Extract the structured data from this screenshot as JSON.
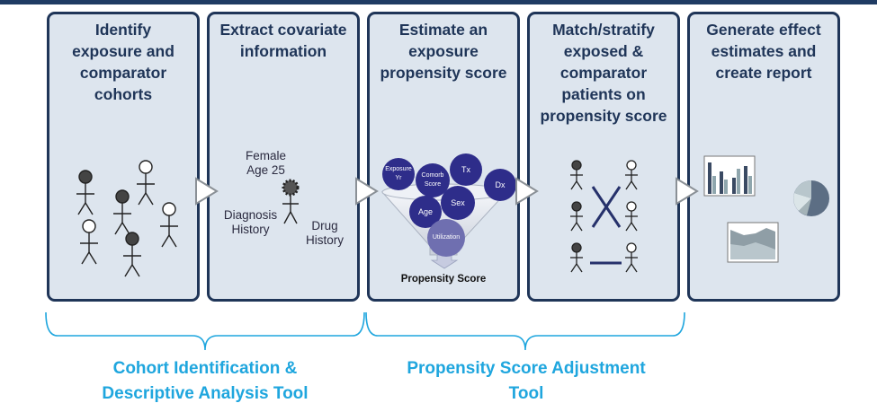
{
  "panels": [
    {
      "title": "Identify\nexposure and\ncomparator\ncohorts"
    },
    {
      "title": "Extract covariate\ninformation"
    },
    {
      "title": "Estimate an\nexposure\npropensity score"
    },
    {
      "title": "Match/stratify\nexposed &\ncomparator\npatients on\npropensity score"
    },
    {
      "title": "Generate effect\nestimates and\ncreate report"
    }
  ],
  "covariates": {
    "female_age": "Female\nAge 25",
    "diagnosis": "Diagnosis\nHistory",
    "drug": "Drug\nHistory"
  },
  "funnel": {
    "bubbles": {
      "exposure_yr": "Exposure\nYr",
      "comorb": "Comorb\nScore",
      "tx": "Tx",
      "dx": "Dx",
      "sex": "Sex",
      "age": "Age",
      "utilization": "Utilization"
    },
    "output": "Propensity Score"
  },
  "tools": [
    {
      "label": "Cohort Identification &\nDescriptive Analysis Tool"
    },
    {
      "label": "Propensity Score Adjustment\nTool"
    }
  ],
  "colors": {
    "panel_border": "#1f3558",
    "panel_fill": "#dde5ee",
    "bubble": "#2e2d8a",
    "tool_label": "#1fa6de"
  }
}
